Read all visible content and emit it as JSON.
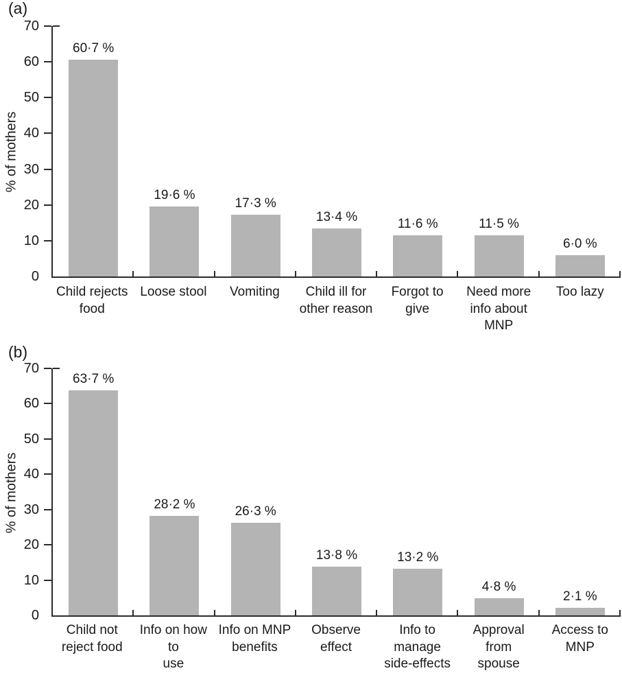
{
  "colors": {
    "background": "#ffffff",
    "bar_fill": "#b4b4b4",
    "axis": "#2b2b2b",
    "text": "#1a1a1a"
  },
  "chart_data": [
    {
      "type": "bar",
      "panel_label": "(a)",
      "title": "",
      "xlabel": "",
      "ylabel": "% of mothers",
      "ylim": [
        0,
        70
      ],
      "yticks": [
        0,
        10,
        20,
        30,
        40,
        50,
        60,
        70
      ],
      "grid": false,
      "legend": "none",
      "categories": [
        "Child rejects food",
        "Loose stool",
        "Vomiting",
        "Child ill for other reason",
        "Forgot to give",
        "Need more info about MNP",
        "Too lazy"
      ],
      "category_lines": [
        [
          "Child rejects",
          "food"
        ],
        [
          "Loose stool"
        ],
        [
          "Vomiting"
        ],
        [
          "Child ill for",
          "other reason"
        ],
        [
          "Forgot to give"
        ],
        [
          "Need more",
          "info about",
          "MNP"
        ],
        [
          "Too lazy"
        ]
      ],
      "values": [
        60.7,
        19.6,
        17.3,
        13.4,
        11.6,
        11.5,
        6.0
      ],
      "value_labels": [
        "60·7 %",
        "19·6 %",
        "17·3 %",
        "13·4 %",
        "11·6 %",
        "11·5 %",
        "6·0 %"
      ]
    },
    {
      "type": "bar",
      "panel_label": "(b)",
      "title": "",
      "xlabel": "",
      "ylabel": "% of mothers",
      "ylim": [
        0,
        70
      ],
      "yticks": [
        0,
        10,
        20,
        30,
        40,
        50,
        60,
        70
      ],
      "grid": false,
      "legend": "none",
      "categories": [
        "Child not reject food",
        "Info on how to use",
        "Info on MNP benefits",
        "Observe effect",
        "Info to manage side-effects",
        "Approval from spouse",
        "Access to MNP"
      ],
      "category_lines": [
        [
          "Child not",
          "reject food"
        ],
        [
          "Info on how to",
          "use"
        ],
        [
          "Info on MNP",
          "benefits"
        ],
        [
          "Observe effect"
        ],
        [
          "Info to manage",
          "side-effects"
        ],
        [
          "Approval from",
          "spouse"
        ],
        [
          "Access to",
          "MNP"
        ]
      ],
      "values": [
        63.7,
        28.2,
        26.3,
        13.8,
        13.2,
        4.8,
        2.1
      ],
      "value_labels": [
        "63·7 %",
        "28·2 %",
        "26·3 %",
        "13·8 %",
        "13·2 %",
        "4·8 %",
        "2·1 %"
      ]
    }
  ]
}
